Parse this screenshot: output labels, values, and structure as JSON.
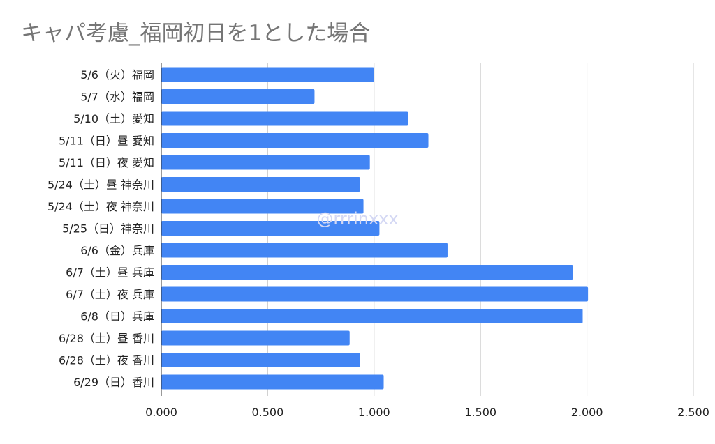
{
  "chart_data": {
    "type": "bar",
    "orientation": "horizontal",
    "title": "キャパ考慮_福岡初日を1とした場合",
    "watermark": "@rrrinxxx",
    "categories": [
      "5/6（火）福岡",
      "5/7（水）福岡",
      "5/10（土）愛知",
      "5/11（日）昼 愛知",
      "5/11（日）夜 愛知",
      "5/24（土）昼 神奈川",
      "5/24（土）夜 神奈川",
      "5/25（日）神奈川",
      "6/6（金）兵庫",
      "6/7（土）昼 兵庫",
      "6/7（土）夜 兵庫",
      "6/8（日）兵庫",
      "6/28（土）昼 香川",
      "6/28（土）夜 香川",
      "6/29（日）香川"
    ],
    "values": [
      1.0,
      0.72,
      1.16,
      1.255,
      0.98,
      0.935,
      0.95,
      1.025,
      1.345,
      1.935,
      2.005,
      1.98,
      0.885,
      0.935,
      1.045
    ],
    "xlim": [
      0,
      2.5
    ],
    "x_ticks": [
      "0.000",
      "0.500",
      "1.000",
      "1.500",
      "2.000",
      "2.500"
    ],
    "x_tick_values": [
      0,
      0.5,
      1.0,
      1.5,
      2.0,
      2.5
    ],
    "grid": true,
    "bar_color": "#4285f4",
    "grid_color": "#cccccc",
    "title_color": "#757575",
    "watermark_color": "#d4d8f4"
  }
}
